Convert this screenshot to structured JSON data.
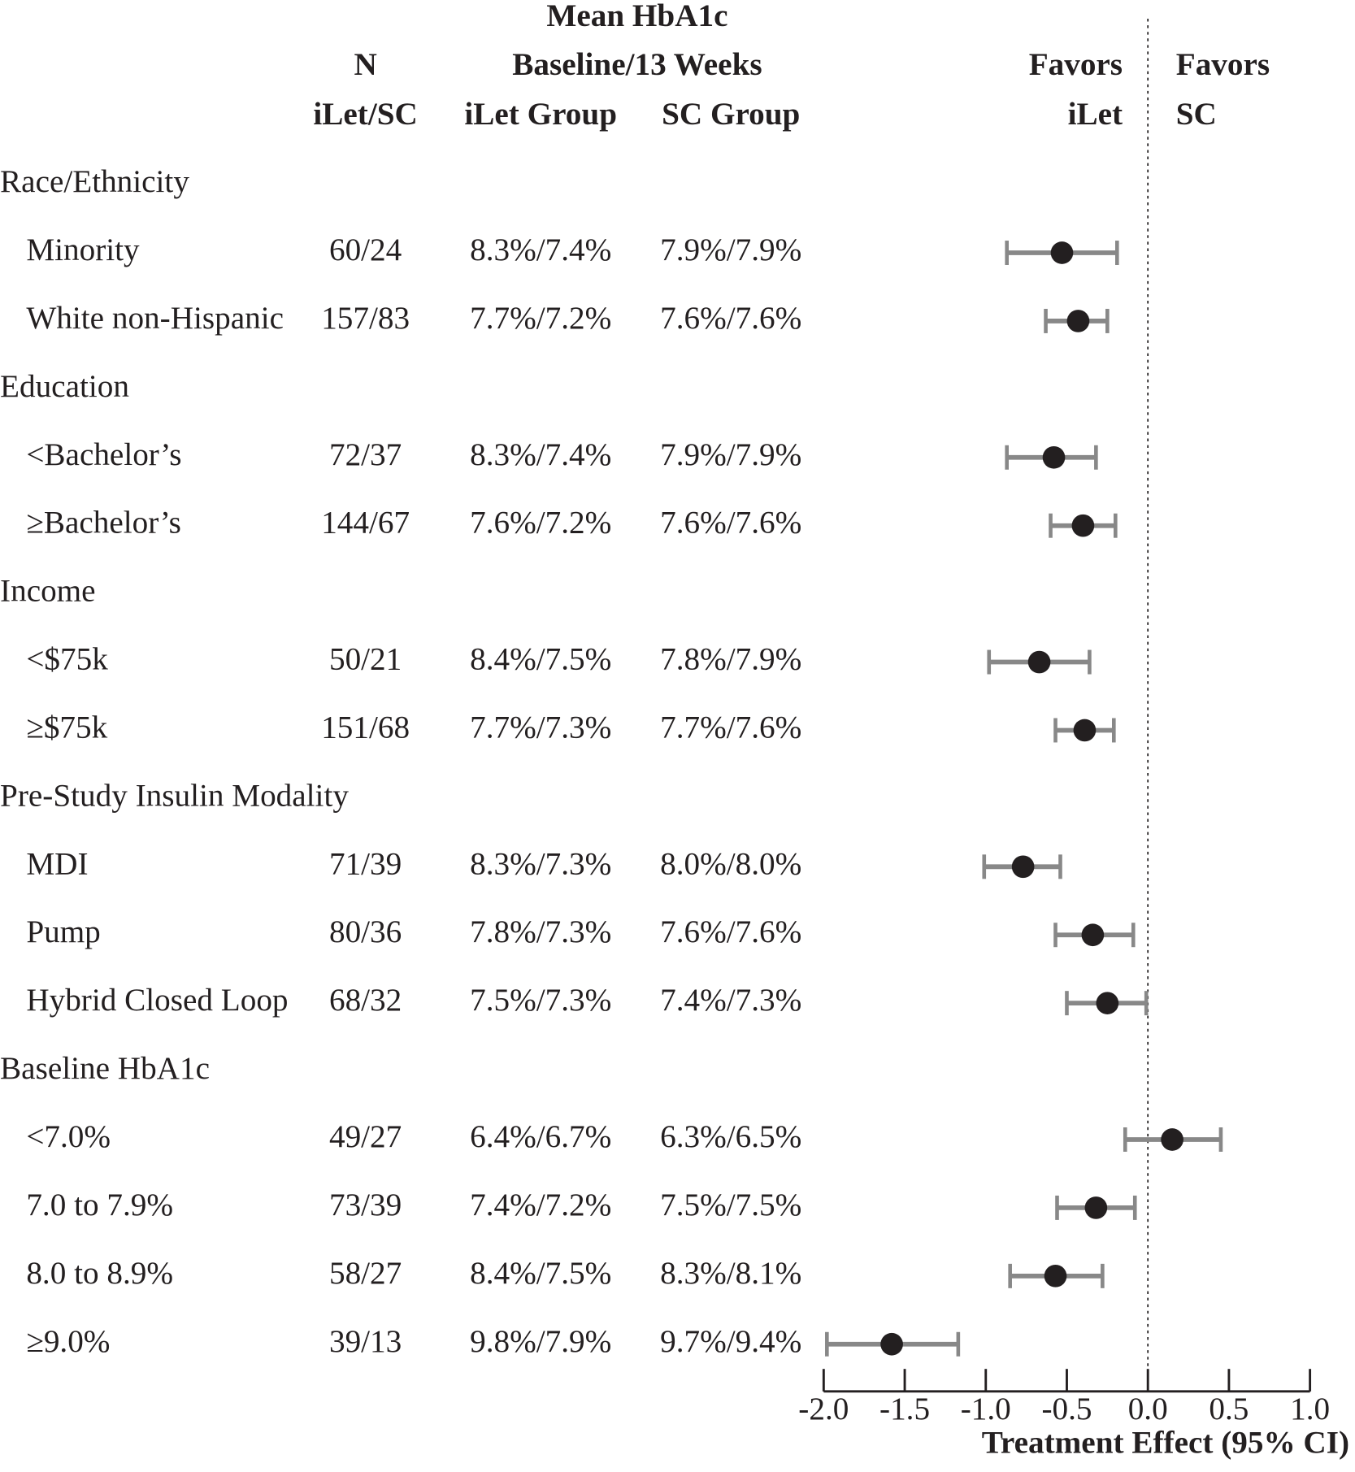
{
  "chart_data": {
    "type": "forest",
    "header": {
      "mean": [
        "Mean HbA1c",
        "Baseline/13 Weeks"
      ],
      "n": [
        "N",
        "iLet/SC"
      ],
      "ilet": "iLet Group",
      "sc": "SC Group",
      "favors_left": [
        "Favors",
        "iLet"
      ],
      "favors_right": [
        "Favors",
        "SC"
      ]
    },
    "xlabel": "Treatment Effect (95% CI)",
    "xlim": [
      -2.0,
      1.0
    ],
    "xticks": [
      {
        "value": -2.0,
        "label": "-2.0"
      },
      {
        "value": -1.5,
        "label": "-1.5"
      },
      {
        "value": -1.0,
        "label": "-1.0"
      },
      -0.5,
      {
        "value": 0.0,
        "label": "0.0"
      },
      0.5,
      {
        "value": 1.0,
        "label": "1.0"
      }
    ],
    "reference_line": 0,
    "point_color": "#231f20",
    "ci_color": "#888888",
    "groups": [
      {
        "name": "Race/Ethnicity",
        "rows": [
          {
            "label": "Minority",
            "n": "60/24",
            "ilet": "8.3%/7.4%",
            "sc": "7.9%/7.9%",
            "estimate": -0.53,
            "lower": -0.87,
            "upper": -0.19
          },
          {
            "label": "White non-Hispanic",
            "n": "157/83",
            "ilet": "7.7%/7.2%",
            "sc": "7.6%/7.6%",
            "estimate": -0.43,
            "lower": -0.63,
            "upper": -0.25
          }
        ]
      },
      {
        "name": "Education",
        "rows": [
          {
            "label": "<Bachelor’s",
            "n": "72/37",
            "ilet": "8.3%/7.4%",
            "sc": "7.9%/7.9%",
            "estimate": -0.58,
            "lower": -0.87,
            "upper": -0.32
          },
          {
            "label": "≥Bachelor’s",
            "n": "144/67",
            "ilet": "7.6%/7.2%",
            "sc": "7.6%/7.6%",
            "estimate": -0.4,
            "lower": -0.6,
            "upper": -0.2
          }
        ]
      },
      {
        "name": "Income",
        "rows": [
          {
            "label": "<$75k",
            "n": "50/21",
            "ilet": "8.4%/7.5%",
            "sc": "7.8%/7.9%",
            "estimate": -0.67,
            "lower": -0.98,
            "upper": -0.36
          },
          {
            "label": "≥$75k",
            "n": "151/68",
            "ilet": "7.7%/7.3%",
            "sc": "7.7%/7.6%",
            "estimate": -0.39,
            "lower": -0.57,
            "upper": -0.21
          }
        ]
      },
      {
        "name": "Pre-Study Insulin Modality",
        "rows": [
          {
            "label": "MDI",
            "n": "71/39",
            "ilet": "8.3%/7.3%",
            "sc": "8.0%/8.0%",
            "estimate": -0.77,
            "lower": -1.01,
            "upper": -0.54
          },
          {
            "label": "Pump",
            "n": "80/36",
            "ilet": "7.8%/7.3%",
            "sc": "7.6%/7.6%",
            "estimate": -0.34,
            "lower": -0.57,
            "upper": -0.09
          },
          {
            "label": "Hybrid Closed Loop",
            "n": "68/32",
            "ilet": "7.5%/7.3%",
            "sc": "7.4%/7.3%",
            "estimate": -0.25,
            "lower": -0.5,
            "upper": -0.01
          }
        ]
      },
      {
        "name": "Baseline HbA1c",
        "rows": [
          {
            "label": "<7.0%",
            "n": "49/27",
            "ilet": "6.4%/6.7%",
            "sc": "6.3%/6.5%",
            "estimate": 0.15,
            "lower": -0.14,
            "upper": 0.45
          },
          {
            "label": "7.0 to 7.9%",
            "n": "73/39",
            "ilet": "7.4%/7.2%",
            "sc": "7.5%/7.5%",
            "estimate": -0.32,
            "lower": -0.56,
            "upper": -0.08
          },
          {
            "label": "8.0 to 8.9%",
            "n": "58/27",
            "ilet": "8.4%/7.5%",
            "sc": "8.3%/8.1%",
            "estimate": -0.57,
            "lower": -0.85,
            "upper": -0.28
          },
          {
            "label": "≥9.0%",
            "n": "39/13",
            "ilet": "9.8%/7.9%",
            "sc": "9.7%/9.4%",
            "estimate": -1.58,
            "lower": -1.98,
            "upper": -1.17
          }
        ]
      }
    ]
  }
}
